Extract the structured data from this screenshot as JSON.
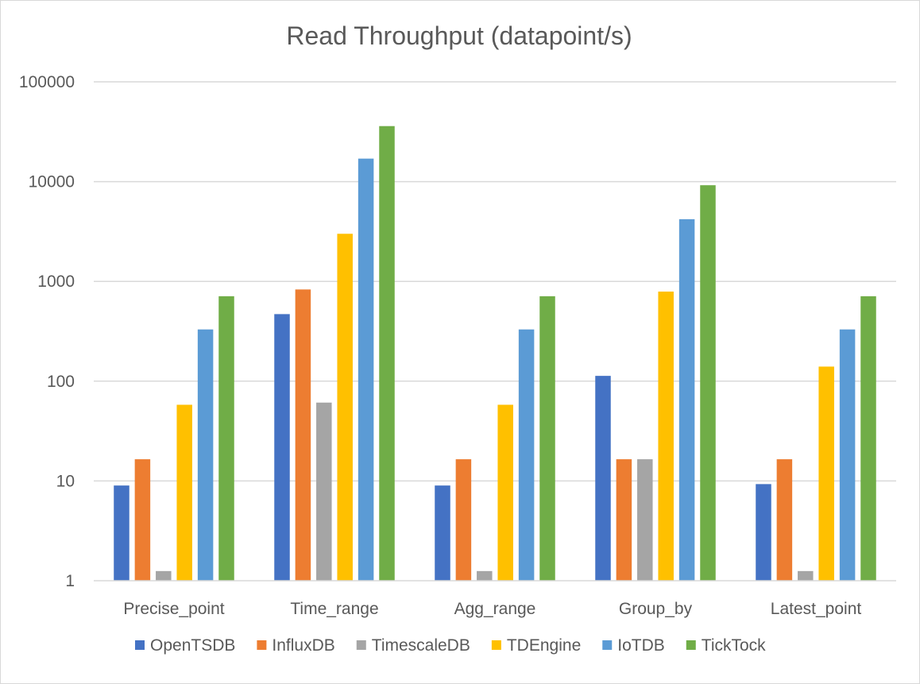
{
  "chart_data": {
    "type": "bar",
    "title": "Read Throughput (datapoint/s)",
    "xlabel": "",
    "ylabel": "",
    "yscale": "log",
    "ylim": [
      1,
      100000
    ],
    "y_ticks": [
      "1",
      "10",
      "100",
      "1000",
      "10000",
      "100000"
    ],
    "grid": true,
    "legend_position": "bottom",
    "categories": [
      "Precise_point",
      "Time_range",
      "Agg_range",
      "Group_by",
      "Latest_point"
    ],
    "series": [
      {
        "name": "OpenTSDB",
        "color": "#4472c4",
        "values": [
          9,
          470,
          9,
          113,
          9.3
        ]
      },
      {
        "name": "InfluxDB",
        "color": "#ed7d31",
        "values": [
          16.5,
          830,
          16.5,
          16.5,
          16.5
        ]
      },
      {
        "name": "TimescaleDB",
        "color": "#a5a5a5",
        "values": [
          1.25,
          61,
          1.25,
          16.5,
          1.25
        ]
      },
      {
        "name": "TDEngine",
        "color": "#ffc000",
        "values": [
          58,
          3000,
          58,
          790,
          140
        ]
      },
      {
        "name": "IoTDB",
        "color": "#5b9bd5",
        "values": [
          330,
          17000,
          330,
          4200,
          330
        ]
      },
      {
        "name": "TickTock",
        "color": "#70ad47",
        "values": [
          710,
          36000,
          710,
          9200,
          710
        ]
      }
    ]
  }
}
